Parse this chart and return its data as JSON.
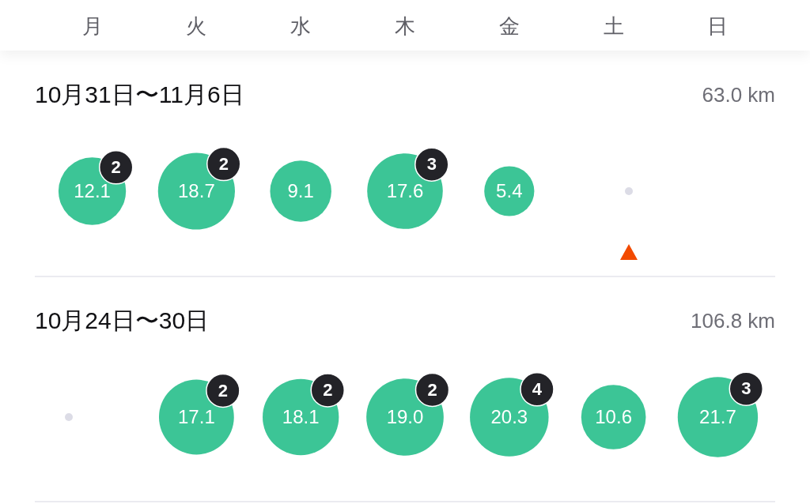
{
  "chart_data": {
    "type": "other",
    "categories": [
      "月",
      "火",
      "水",
      "木",
      "金",
      "土",
      "日"
    ],
    "series": [
      {
        "name": "10月31日〜11月6日",
        "values": [
          12.1,
          18.7,
          9.1,
          17.6,
          5.4,
          null,
          null
        ],
        "value_labels": [
          "12.1",
          "18.7",
          "9.1",
          "17.6",
          "5.4",
          null,
          null
        ],
        "color": "#3cc596"
      },
      {
        "values": [
          2,
          2,
          null,
          3,
          null,
          null,
          null
        ],
        "color": "#232328"
      },
      {
        "name": "10月24日〜30日",
        "values": [
          null,
          17.1,
          18.1,
          19.0,
          20.3,
          10.6,
          21.7
        ],
        "value_labels": [
          null,
          "17.1",
          "18.1",
          "19.0",
          "20.3",
          "10.6",
          "21.7"
        ],
        "color": "#3cc596"
      },
      {
        "values": [
          null,
          2,
          2,
          2,
          4,
          null,
          3
        ],
        "color": "#232328"
      }
    ],
    "data_labels": true,
    "annotations": [
      "63.0 km",
      "106.8 km"
    ]
  }
}
